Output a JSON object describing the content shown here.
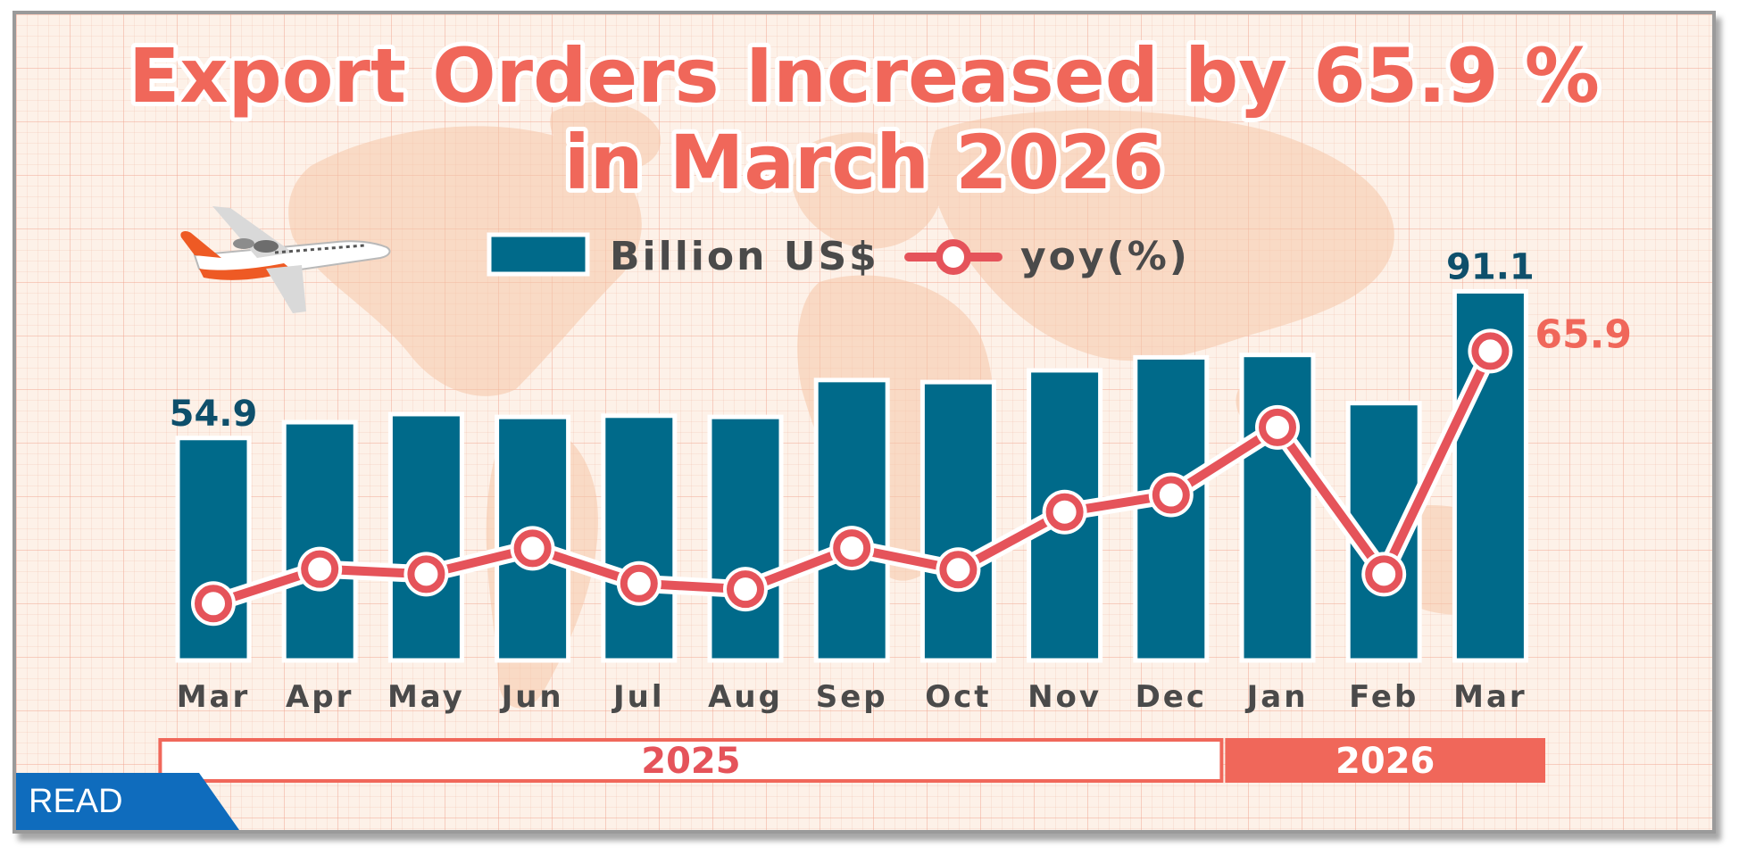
{
  "title_line1": "Export Orders Increased by 65.9 %",
  "title_line2": "in March 2026",
  "badge": "READ",
  "colors": {
    "bar": "#006a8a",
    "line": "#e5535a",
    "title": "#f0675a",
    "label_bar": "#0e4f6b"
  },
  "chart_data": {
    "type": "bar",
    "categories": [
      "Mar",
      "Apr",
      "May",
      "Jun",
      "Jul",
      "Aug",
      "Sep",
      "Oct",
      "Nov",
      "Dec",
      "Jan",
      "Feb",
      "Mar"
    ],
    "year_groups": [
      {
        "label": "2025",
        "span": 10
      },
      {
        "label": "2026",
        "span": 3
      }
    ],
    "series": [
      {
        "name": "Billion US$",
        "type": "bar",
        "values": [
          54.9,
          58.8,
          60.8,
          60.1,
          60.4,
          60.1,
          69.2,
          68.7,
          71.6,
          74.8,
          75.4,
          63.5,
          91.1
        ]
      },
      {
        "name": "yoy(%)",
        "type": "line",
        "values": [
          -18.2,
          -6.7,
          -8.4,
          0.2,
          -11.5,
          -13.4,
          0.3,
          -6.9,
          12.3,
          18.0,
          40.5,
          -8.4,
          65.9
        ]
      }
    ],
    "data_labels": [
      {
        "series": "Billion US$",
        "index": 0,
        "text": "54.9"
      },
      {
        "series": "Billion US$",
        "index": 12,
        "text": "91.1"
      },
      {
        "series": "yoy(%)",
        "index": 12,
        "text": "65.9"
      }
    ],
    "bar_ylim": [
      0,
      100
    ],
    "line_ylim": [
      -30,
      80
    ],
    "legend_position": "top-center",
    "grid": false
  }
}
